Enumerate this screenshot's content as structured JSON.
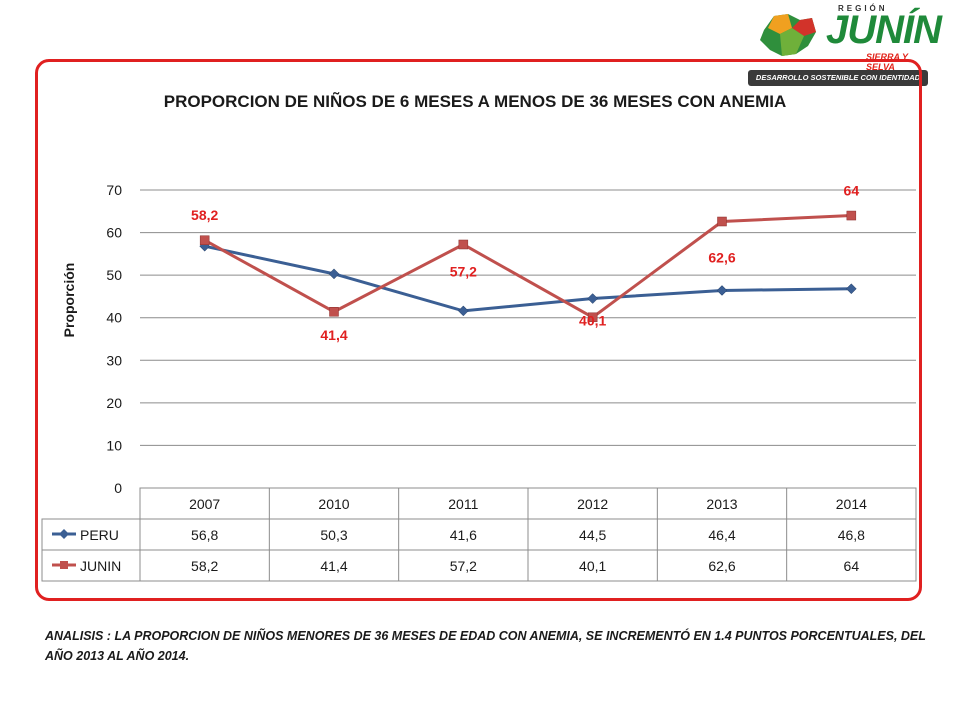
{
  "logo": {
    "region": "REGIÓN",
    "name": "JUNÍN",
    "tagline": "SIERRA Y SELVA",
    "banner": "DESARROLLO SOSTENIBLE CON IDENTIDAD"
  },
  "colors": {
    "frame": "#e02020",
    "peru": "#3b5f94",
    "junin": "#c0504d",
    "label": "#e02020"
  },
  "chart_data": {
    "type": "line",
    "title": "PROPORCION DE NIÑOS DE 6 MESES A MENOS DE 36 MESES CON  ANEMIA",
    "ylabel": "Proporción",
    "xlabel": "",
    "categories": [
      "2007",
      "2010",
      "2011",
      "2012",
      "2013",
      "2014"
    ],
    "ylim": [
      0,
      70
    ],
    "yticks": [
      "0",
      "10",
      "20",
      "30",
      "40",
      "50",
      "60",
      "70"
    ],
    "grid": true,
    "legend": "data-table",
    "series": [
      {
        "name": "PERU",
        "values": [
          56.8,
          50.3,
          41.6,
          44.5,
          46.4,
          46.8
        ],
        "display": [
          "56,8",
          "50,3",
          "41,6",
          "44,5",
          "46,4",
          "46,8"
        ],
        "marker": "diamond"
      },
      {
        "name": "JUNIN",
        "values": [
          58.2,
          41.4,
          57.2,
          40.1,
          62.6,
          64
        ],
        "display": [
          "58,2",
          "41,4",
          "57,2",
          "40,1",
          "62,6",
          "64"
        ],
        "marker": "square"
      }
    ],
    "data_labels": {
      "series": "JUNIN",
      "labels": [
        "58,2",
        "41,4",
        "57,2",
        "40,1",
        "62,6",
        "64"
      ]
    }
  },
  "analysis": "ANALISIS : LA PROPORCION DE NIÑOS  MENORES DE 36 MESES DE EDAD CON ANEMIA,  SE  INCREMENTÓ EN 1.4 PUNTOS PORCENTUALES, DEL AÑO 2013 AL AÑO 2014."
}
